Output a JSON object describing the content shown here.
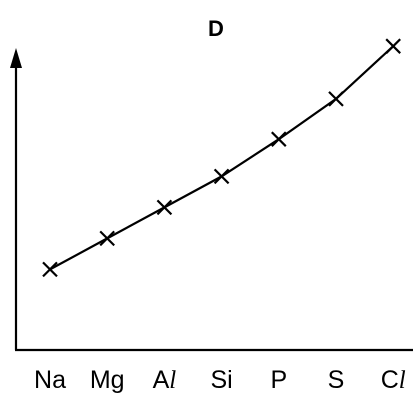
{
  "chart_data": {
    "type": "line",
    "title": "D",
    "xlabel": "",
    "ylabel": "",
    "categories": [
      "Na",
      "Mg",
      "Al",
      "Si",
      "P",
      "S",
      "Cl"
    ],
    "category_display": [
      {
        "plain": "Na",
        "ital": ""
      },
      {
        "plain": "Mg",
        "ital": ""
      },
      {
        "plain": "A",
        "ital": "l"
      },
      {
        "plain": "Si",
        "ital": ""
      },
      {
        "plain": "P",
        "ital": ""
      },
      {
        "plain": "S",
        "ital": ""
      },
      {
        "plain": "C",
        "ital": "l"
      }
    ],
    "values": [
      0.26,
      0.36,
      0.46,
      0.56,
      0.68,
      0.81,
      0.98
    ],
    "ylim": [
      0,
      1
    ],
    "marker": "x",
    "grid": false,
    "y_ticks_shown": false
  }
}
